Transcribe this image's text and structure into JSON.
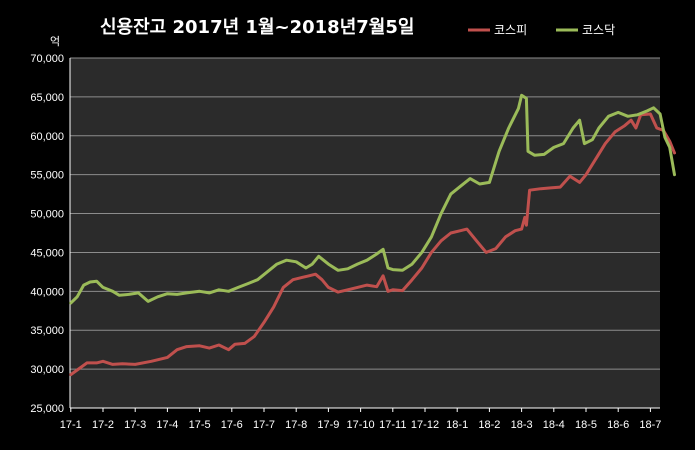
{
  "chart_data": {
    "type": "line",
    "title": "신용잔고 2017년 1월~2018년7월5일",
    "unit_label": "억",
    "xlabel": "",
    "ylabel": "",
    "ylim": [
      25000,
      70000
    ],
    "y_ticks": [
      25000,
      30000,
      35000,
      40000,
      45000,
      50000,
      55000,
      60000,
      65000,
      70000
    ],
    "y_tick_labels": [
      "25,000",
      "30,000",
      "35,000",
      "40,000",
      "45,000",
      "50,000",
      "55,000",
      "60,000",
      "65,000",
      "70,000"
    ],
    "x_range": [
      0,
      18.2
    ],
    "x_ticks": [
      0,
      1,
      2,
      3,
      4,
      5,
      6,
      7,
      8,
      9,
      10,
      11,
      12,
      13,
      14,
      15,
      16,
      17,
      18
    ],
    "x_tick_labels": [
      "17-1",
      "17-2",
      "17-3",
      "17-4",
      "17-5",
      "17-6",
      "17-7",
      "17-8",
      "17-9",
      "17-10",
      "17-11",
      "17-12",
      "18-1",
      "18-2",
      "18-3",
      "18-4",
      "18-5",
      "18-6",
      "18-7"
    ],
    "grid": true,
    "legend_position": "top-right",
    "background": "#2b2b2b",
    "series": [
      {
        "name": "코스피",
        "color": "#c0504d",
        "points": [
          [
            0.0,
            29300
          ],
          [
            0.3,
            30200
          ],
          [
            0.5,
            30800
          ],
          [
            0.8,
            30800
          ],
          [
            1.0,
            31000
          ],
          [
            1.3,
            30600
          ],
          [
            1.6,
            30700
          ],
          [
            2.0,
            30600
          ],
          [
            2.5,
            31000
          ],
          [
            3.0,
            31500
          ],
          [
            3.3,
            32500
          ],
          [
            3.6,
            32900
          ],
          [
            4.0,
            33000
          ],
          [
            4.3,
            32700
          ],
          [
            4.6,
            33100
          ],
          [
            4.9,
            32500
          ],
          [
            5.1,
            33200
          ],
          [
            5.4,
            33300
          ],
          [
            5.7,
            34200
          ],
          [
            6.0,
            36000
          ],
          [
            6.3,
            38000
          ],
          [
            6.6,
            40500
          ],
          [
            6.9,
            41500
          ],
          [
            7.2,
            41800
          ],
          [
            7.4,
            42000
          ],
          [
            7.6,
            42200
          ],
          [
            7.8,
            41500
          ],
          [
            8.0,
            40500
          ],
          [
            8.3,
            39900
          ],
          [
            8.6,
            40200
          ],
          [
            8.9,
            40500
          ],
          [
            9.2,
            40800
          ],
          [
            9.5,
            40600
          ],
          [
            9.7,
            42000
          ],
          [
            9.85,
            40000
          ],
          [
            10.0,
            40200
          ],
          [
            10.3,
            40100
          ],
          [
            10.6,
            41500
          ],
          [
            10.9,
            43000
          ],
          [
            11.2,
            45000
          ],
          [
            11.5,
            46500
          ],
          [
            11.8,
            47500
          ],
          [
            12.1,
            47800
          ],
          [
            12.3,
            48000
          ],
          [
            12.6,
            46500
          ],
          [
            12.9,
            45000
          ],
          [
            13.2,
            45500
          ],
          [
            13.5,
            47000
          ],
          [
            13.8,
            47800
          ],
          [
            14.0,
            48000
          ],
          [
            14.1,
            49500
          ],
          [
            14.15,
            48500
          ],
          [
            14.25,
            53000
          ],
          [
            14.6,
            53200
          ],
          [
            14.9,
            53300
          ],
          [
            15.2,
            53400
          ],
          [
            15.5,
            54800
          ],
          [
            15.8,
            54000
          ],
          [
            16.0,
            55000
          ],
          [
            16.3,
            57000
          ],
          [
            16.6,
            59000
          ],
          [
            16.9,
            60500
          ],
          [
            17.2,
            61300
          ],
          [
            17.4,
            62000
          ],
          [
            17.55,
            61000
          ],
          [
            17.7,
            62700
          ],
          [
            18.0,
            62800
          ],
          [
            18.2,
            61000
          ],
          [
            18.4,
            60700
          ],
          [
            18.6,
            59300
          ],
          [
            18.75,
            57800
          ]
        ]
      },
      {
        "name": "코스닥",
        "color": "#9bbb59",
        "points": [
          [
            0.0,
            38500
          ],
          [
            0.2,
            39300
          ],
          [
            0.4,
            40800
          ],
          [
            0.6,
            41200
          ],
          [
            0.8,
            41300
          ],
          [
            1.0,
            40500
          ],
          [
            1.3,
            40000
          ],
          [
            1.5,
            39500
          ],
          [
            1.8,
            39600
          ],
          [
            2.1,
            39800
          ],
          [
            2.4,
            38700
          ],
          [
            2.7,
            39300
          ],
          [
            3.0,
            39700
          ],
          [
            3.3,
            39600
          ],
          [
            3.6,
            39800
          ],
          [
            4.0,
            40000
          ],
          [
            4.3,
            39800
          ],
          [
            4.6,
            40200
          ],
          [
            4.9,
            40000
          ],
          [
            5.2,
            40500
          ],
          [
            5.5,
            41000
          ],
          [
            5.8,
            41500
          ],
          [
            6.1,
            42500
          ],
          [
            6.4,
            43500
          ],
          [
            6.7,
            44000
          ],
          [
            7.0,
            43800
          ],
          [
            7.3,
            43000
          ],
          [
            7.5,
            43500
          ],
          [
            7.7,
            44500
          ],
          [
            8.0,
            43500
          ],
          [
            8.3,
            42700
          ],
          [
            8.6,
            42900
          ],
          [
            8.9,
            43500
          ],
          [
            9.2,
            44000
          ],
          [
            9.5,
            44800
          ],
          [
            9.7,
            45400
          ],
          [
            9.85,
            43000
          ],
          [
            10.0,
            42800
          ],
          [
            10.3,
            42700
          ],
          [
            10.6,
            43500
          ],
          [
            10.9,
            45000
          ],
          [
            11.2,
            47000
          ],
          [
            11.5,
            50000
          ],
          [
            11.8,
            52500
          ],
          [
            12.1,
            53500
          ],
          [
            12.4,
            54500
          ],
          [
            12.7,
            53800
          ],
          [
            13.0,
            54000
          ],
          [
            13.3,
            58000
          ],
          [
            13.6,
            61000
          ],
          [
            13.9,
            63500
          ],
          [
            14.0,
            65200
          ],
          [
            14.15,
            64800
          ],
          [
            14.2,
            58000
          ],
          [
            14.4,
            57500
          ],
          [
            14.7,
            57600
          ],
          [
            15.0,
            58500
          ],
          [
            15.3,
            59000
          ],
          [
            15.6,
            61000
          ],
          [
            15.8,
            62000
          ],
          [
            15.95,
            59000
          ],
          [
            16.2,
            59500
          ],
          [
            16.4,
            61000
          ],
          [
            16.7,
            62500
          ],
          [
            17.0,
            63000
          ],
          [
            17.3,
            62500
          ],
          [
            17.6,
            62700
          ],
          [
            17.9,
            63200
          ],
          [
            18.1,
            63600
          ],
          [
            18.3,
            62800
          ],
          [
            18.45,
            59800
          ],
          [
            18.6,
            58500
          ],
          [
            18.75,
            55000
          ]
        ]
      }
    ]
  }
}
